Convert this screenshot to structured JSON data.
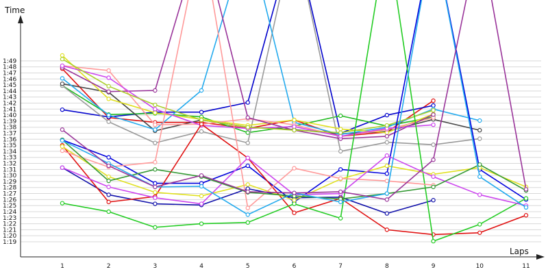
{
  "chart_data": {
    "type": "line",
    "xlabel": "Laps",
    "ylabel": "Time",
    "x": [
      1,
      2,
      3,
      4,
      5,
      6,
      7,
      8,
      9,
      10,
      11
    ],
    "xlim": [
      0.1,
      11
    ],
    "y_unit": "m:ss",
    "ylim": [
      "1:16.5",
      "2:00"
    ],
    "y_tick_labels": [
      "1:19",
      "1:20",
      "1:21",
      "1:22",
      "1:23",
      "1:24",
      "1:25",
      "1:26",
      "1:27",
      "1:28",
      "1:29",
      "1:30",
      "1:31",
      "1:32",
      "1:33",
      "1:34",
      "1:35",
      "1:36",
      "1:37",
      "1:38",
      "1:39",
      "1:40",
      "1:41",
      "1:42",
      "1:43",
      "1:44",
      "1:45",
      "1:46",
      "1:47",
      "1:48",
      "1:49"
    ],
    "x_tick_labels": [
      "1",
      "2",
      "3",
      "4",
      "5",
      "6",
      "7",
      "8",
      "9",
      "10",
      "11"
    ],
    "grid": true,
    "series": [
      {
        "color": "#e01010",
        "values": [
          "1:47.7",
          "1:39.6",
          "1:38.8",
          "1:38.8",
          "1:37.8",
          "1:39.2",
          "1:36.5",
          "1:37.2",
          "1:42.4",
          null,
          null
        ]
      },
      {
        "color": "#0000cc",
        "values": [
          "1:40.9",
          "1:39.7",
          "1:40.5",
          "1:40.5",
          "1:42.1",
          "2:10",
          "1:37.0",
          "1:40.0",
          "1:41.6",
          null,
          null
        ]
      },
      {
        "color": "#22bb22",
        "values": [
          "1:44.9",
          "1:40.1",
          "1:40.3",
          "1:39.7",
          "1:37.1",
          "1:38.2",
          "1:39.9",
          "1:38.2",
          "1:39.7",
          null,
          null
        ]
      },
      {
        "color": "#999999",
        "values": [
          "1:44.9",
          "1:38.9",
          "1:35.4",
          "1:37.3",
          "1:35.4",
          "2:10",
          "1:34.0",
          "1:35.5",
          "1:35.1",
          "1:36.1",
          null
        ]
      },
      {
        "color": "#444444",
        "values": [
          "1:45.2",
          "1:43.8",
          "1:37.4",
          "1:39.2",
          "1:38.0",
          "1:37.6",
          "1:36.9",
          "1:37.3",
          "1:39.3",
          "1:37.5",
          null
        ]
      },
      {
        "color": "#22aaee",
        "values": [
          "1:46.1",
          "1:40.0",
          "1:37.6",
          "1:44.1",
          "2:10",
          "1:38.8",
          "1:36.8",
          "1:38.0",
          "1:41.0",
          "1:39.1",
          null
        ]
      },
      {
        "color": "#e0e020",
        "values": [
          "1:49.9",
          "1:42.7",
          "1:40.4",
          "1:39.3",
          "1:38.3",
          "1:39.2",
          "1:37.7",
          "1:37.1",
          "1:40.2",
          null,
          null
        ]
      },
      {
        "color": "#ff9999",
        "values": [
          "1:48.2",
          "1:47.4",
          "1:38.4",
          "1:38.5",
          "1:39.4",
          "1:38.4",
          "1:36.5",
          "1:37.6",
          "1:39.6",
          null,
          null
        ]
      },
      {
        "color": "#993399",
        "values": [
          "1:47.9",
          "1:43.9",
          "1:44.1",
          "2:10",
          "1:39.6",
          "1:37.5",
          "1:36.1",
          "1:36.5",
          "1:40.1",
          null,
          null
        ]
      },
      {
        "color": "#cc44ee",
        "values": [
          "1:48.2",
          "1:46.2",
          "1:41.0",
          "1:38.3",
          "1:37.8",
          "1:38.1",
          "1:36.5",
          "1:37.8",
          "1:38.4",
          null,
          null
        ]
      },
      {
        "color": "#aad02a",
        "values": [
          "1:49.3",
          "1:44.8",
          "1:41.7",
          "1:39.2",
          "1:38.0",
          "1:37.5",
          "1:37.1",
          "1:38.3",
          "1:40.8",
          null,
          null
        ]
      },
      {
        "color": "#1010aa",
        "values": [
          "1:31.3",
          "1:26.8",
          "1:25.3",
          "1:25.1",
          "1:27.8",
          "1:26.3",
          "1:26.4",
          "1:23.7",
          "1:25.9",
          null,
          null
        ]
      },
      {
        "color": "#0000dd",
        "values": [
          "1:35.9",
          "1:33.0",
          "1:28.7",
          "1:28.7",
          "1:31.6",
          "1:25.6",
          "1:31.0",
          "1:30.3",
          "2:10",
          "1:31.0",
          "1:26.0"
        ]
      },
      {
        "color": "#e01010",
        "values": [
          "1:35.0",
          "1:25.6",
          "1:26.5",
          "1:38.5",
          "1:32.9",
          "1:23.8",
          "1:26.2",
          "1:21.0",
          "1:20.2",
          "1:20.5",
          "1:23.4"
        ]
      },
      {
        "color": "#22cc22",
        "values": [
          "1:25.4",
          "1:24.0",
          "1:21.4",
          "1:22.0",
          "1:22.2",
          "1:25.3",
          "1:22.9",
          "2:10",
          "1:19.1",
          "1:21.9",
          "1:26.2"
        ]
      },
      {
        "color": "#e0e020",
        "values": [
          "1:34.8",
          "1:29.8",
          "1:27.2",
          "1:26.6",
          "1:28.5",
          "1:25.9",
          "1:29.4",
          "1:31.6",
          "1:30.2",
          "1:31.3",
          "1:28.1"
        ]
      },
      {
        "color": "#ff9999",
        "values": [
          "1:34.1",
          "1:31.4",
          "1:32.2",
          "2:10",
          "1:24.6",
          "1:31.2",
          "1:29.5",
          "1:29.1",
          "1:28.4",
          null,
          null
        ]
      },
      {
        "color": "#cc44ee",
        "values": [
          "1:31.3",
          "1:28.1",
          "1:26.3",
          "1:25.3",
          "1:32.9",
          "1:26.8",
          "1:27.0",
          "1:33.3",
          "1:29.8",
          "1:26.8",
          "1:25.0"
        ]
      },
      {
        "color": "#339933",
        "values": [
          "1:35.9",
          "1:29.1",
          "1:31.0",
          "1:29.8",
          "1:27.2",
          "1:26.6",
          "1:26.1",
          "1:27.0",
          "1:28.1",
          "1:31.8",
          "1:27.5"
        ]
      },
      {
        "color": "#22aaee",
        "values": [
          "1:35.8",
          "1:32.0",
          "1:28.1",
          "1:28.2",
          "1:23.5",
          "1:27.1",
          "1:25.6",
          "1:27.0",
          "2:10",
          "1:29.8",
          "1:24.7"
        ]
      },
      {
        "color": "#993399",
        "values": [
          "1:37.6",
          "1:31.6",
          "1:28.1",
          "1:30.0",
          "1:27.3",
          "1:27.1",
          "1:27.3",
          "1:26.0",
          "1:32.6",
          "2:10",
          "1:27.7"
        ]
      }
    ]
  }
}
